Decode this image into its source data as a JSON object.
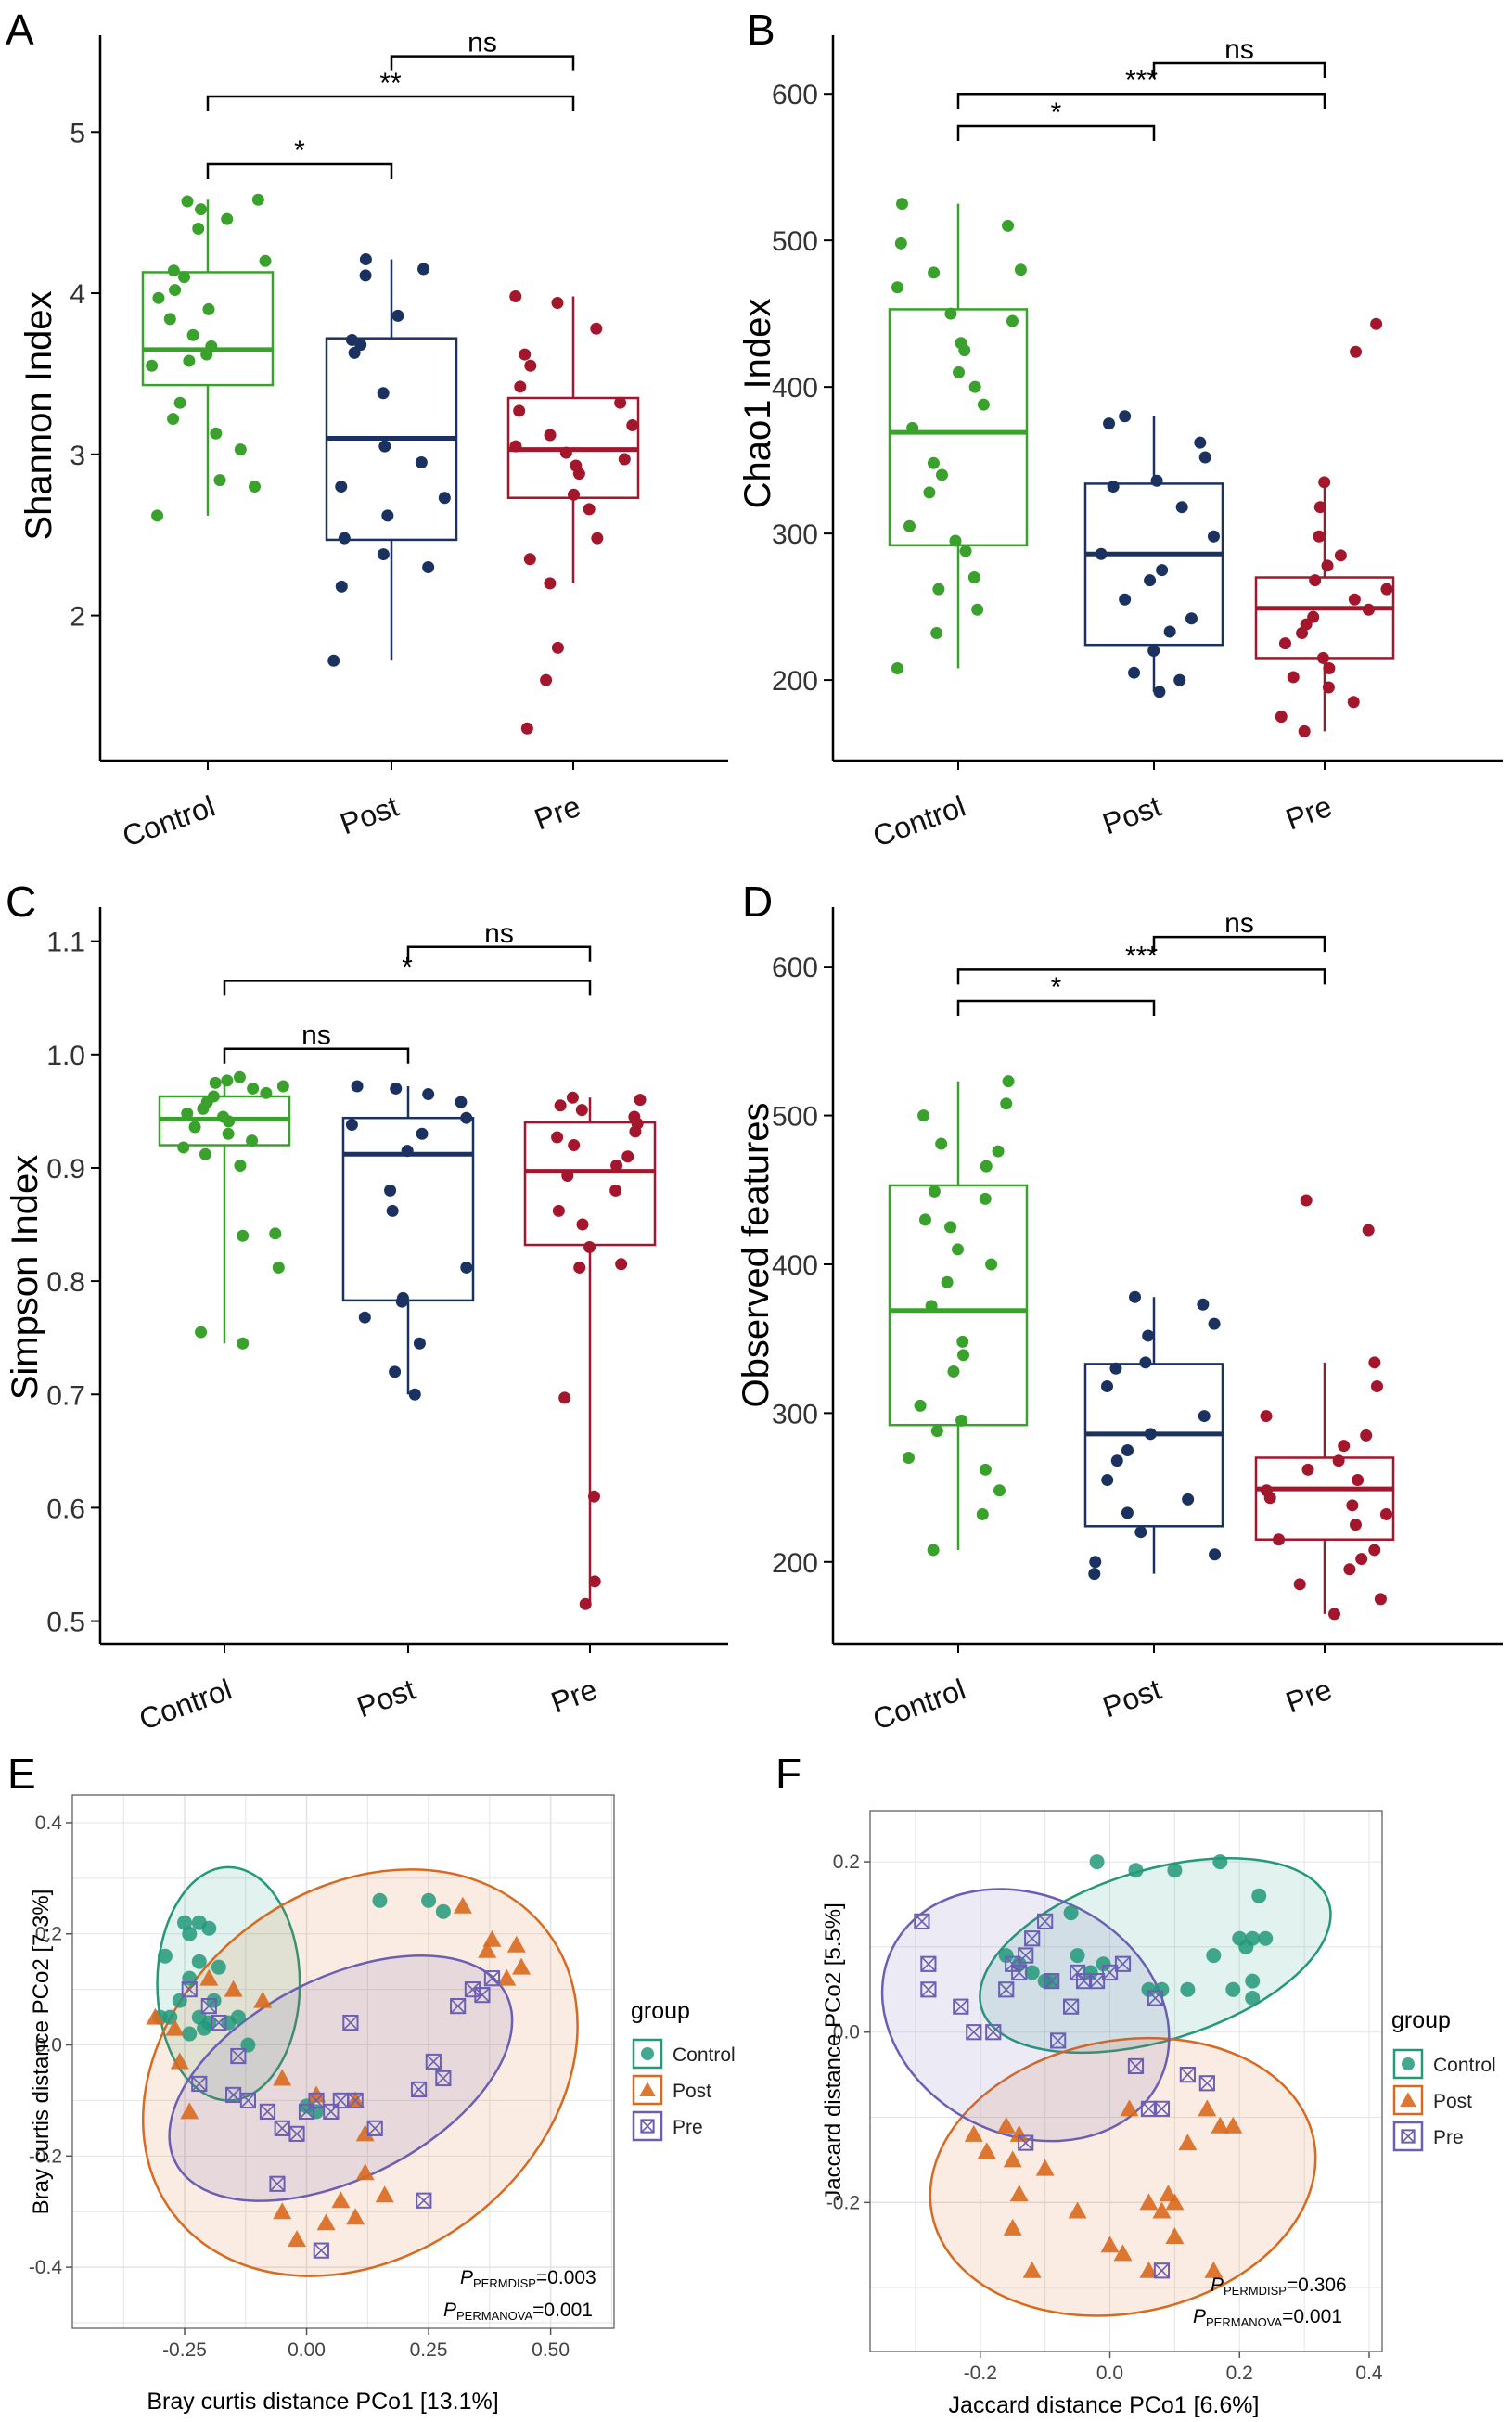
{
  "colors": {
    "control_box": "#3aa22c",
    "post_box": "#1b3260",
    "pre_box": "#a3162c",
    "control_pcoa": "#22997a",
    "post_pcoa": "#d9691e",
    "pre_pcoa": "#6b5fb3",
    "grid": "#e4e4e4"
  },
  "chart_data": [
    {
      "panel": "A",
      "type": "box",
      "ylabel": "Shannon Index",
      "categories": [
        "Control",
        "Post",
        "Pre"
      ],
      "ylim": [
        1.1,
        5.6
      ],
      "yticks": [
        {
          "v": 2,
          "label": "2"
        },
        {
          "v": 3,
          "label": "3"
        },
        {
          "v": 4,
          "label": "4"
        },
        {
          "v": 5,
          "label": "5"
        }
      ],
      "boxes": [
        {
          "q1": 3.43,
          "median": 3.65,
          "q3": 4.13,
          "whislo": 2.62,
          "whishi": 4.58
        },
        {
          "q1": 2.47,
          "median": 3.1,
          "q3": 3.72,
          "whislo": 1.72,
          "whishi": 4.21
        },
        {
          "q1": 2.73,
          "median": 3.03,
          "q3": 3.35,
          "whislo": 2.2,
          "whishi": 3.98
        }
      ],
      "points": [
        [
          4.58,
          4.57,
          4.52,
          4.46,
          4.4,
          4.2,
          4.14,
          4.1,
          4.02,
          3.97,
          3.9,
          3.84,
          3.74,
          3.67,
          3.62,
          3.58,
          3.55,
          3.32,
          3.22,
          3.13,
          3.03,
          2.84,
          2.8,
          2.62
        ],
        [
          4.21,
          4.15,
          4.11,
          3.86,
          3.71,
          3.68,
          3.63,
          3.38,
          3.05,
          2.95,
          2.8,
          2.73,
          2.62,
          2.48,
          2.38,
          2.3,
          2.18,
          1.72
        ],
        [
          3.98,
          3.94,
          3.78,
          3.62,
          3.55,
          3.42,
          3.32,
          3.27,
          3.18,
          3.12,
          3.05,
          3.01,
          2.97,
          2.93,
          2.88,
          2.75,
          2.66,
          2.48,
          2.35,
          2.2,
          1.8,
          1.6,
          1.3
        ]
      ],
      "brackets": [
        {
          "from": 0,
          "to": 1,
          "label": "*",
          "y": 4.8
        },
        {
          "from": 0,
          "to": 2,
          "label": "**",
          "y": 5.22
        },
        {
          "from": 1,
          "to": 2,
          "label": "ns",
          "y": 5.47
        }
      ]
    },
    {
      "panel": "B",
      "type": "box",
      "ylabel": "Chao1 Index",
      "categories": [
        "Control",
        "Post",
        "Pre"
      ],
      "ylim": [
        145,
        640
      ],
      "yticks": [
        {
          "v": 200,
          "label": "200"
        },
        {
          "v": 300,
          "label": "300"
        },
        {
          "v": 400,
          "label": "400"
        },
        {
          "v": 500,
          "label": "500"
        },
        {
          "v": 600,
          "label": "600"
        }
      ],
      "boxes": [
        {
          "q1": 292,
          "median": 369,
          "q3": 453,
          "whislo": 208,
          "whishi": 525
        },
        {
          "q1": 224,
          "median": 286,
          "q3": 334,
          "whislo": 192,
          "whishi": 380
        },
        {
          "q1": 215,
          "median": 249,
          "q3": 270,
          "whislo": 165,
          "whishi": 335
        }
      ],
      "points": [
        [
          525,
          510,
          498,
          480,
          478,
          468,
          450,
          445,
          430,
          425,
          410,
          400,
          388,
          372,
          348,
          340,
          328,
          305,
          295,
          288,
          270,
          262,
          248,
          232,
          208
        ],
        [
          380,
          375,
          362,
          352,
          336,
          332,
          318,
          298,
          286,
          275,
          268,
          255,
          242,
          233,
          220,
          205,
          200,
          192
        ],
        [
          443,
          424,
          335,
          318,
          298,
          285,
          278,
          268,
          262,
          255,
          248,
          243,
          238,
          232,
          225,
          215,
          208,
          202,
          195,
          185,
          175,
          165
        ]
      ],
      "brackets": [
        {
          "from": 0,
          "to": 1,
          "label": "*",
          "y": 578
        },
        {
          "from": 0,
          "to": 2,
          "label": "***",
          "y": 600
        },
        {
          "from": 1,
          "to": 2,
          "label": "ns",
          "y": 621
        }
      ]
    },
    {
      "panel": "C",
      "type": "box",
      "ylabel": "Simpson Index",
      "categories": [
        "Control",
        "Post",
        "Pre"
      ],
      "ylim": [
        0.48,
        1.13
      ],
      "yticks": [
        {
          "v": 0.5,
          "label": "0.5"
        },
        {
          "v": 0.6,
          "label": "0.6"
        },
        {
          "v": 0.7,
          "label": "0.7"
        },
        {
          "v": 0.8,
          "label": "0.8"
        },
        {
          "v": 0.9,
          "label": "0.9"
        },
        {
          "v": 1.0,
          "label": "1.0"
        },
        {
          "v": 1.1,
          "label": "1.1"
        }
      ],
      "boxes": [
        {
          "q1": 0.92,
          "median": 0.943,
          "q3": 0.963,
          "whislo": 0.745,
          "whishi": 0.98
        },
        {
          "q1": 0.783,
          "median": 0.912,
          "q3": 0.944,
          "whislo": 0.7,
          "whishi": 0.972
        },
        {
          "q1": 0.832,
          "median": 0.897,
          "q3": 0.94,
          "whislo": 0.515,
          "whishi": 0.962
        }
      ],
      "points": [
        [
          0.98,
          0.977,
          0.975,
          0.972,
          0.97,
          0.966,
          0.963,
          0.958,
          0.952,
          0.948,
          0.945,
          0.941,
          0.936,
          0.93,
          0.924,
          0.918,
          0.912,
          0.902,
          0.842,
          0.84,
          0.812,
          0.755,
          0.745
        ],
        [
          0.972,
          0.97,
          0.965,
          0.958,
          0.944,
          0.938,
          0.93,
          0.915,
          0.88,
          0.862,
          0.812,
          0.785,
          0.782,
          0.768,
          0.745,
          0.72,
          0.7
        ],
        [
          0.962,
          0.96,
          0.955,
          0.951,
          0.945,
          0.939,
          0.932,
          0.927,
          0.92,
          0.91,
          0.902,
          0.893,
          0.88,
          0.862,
          0.85,
          0.83,
          0.815,
          0.812,
          0.697,
          0.61,
          0.535,
          0.515
        ]
      ],
      "brackets": [
        {
          "from": 0,
          "to": 1,
          "label": "ns",
          "y": 1.005
        },
        {
          "from": 0,
          "to": 2,
          "label": "*",
          "y": 1.065
        },
        {
          "from": 1,
          "to": 2,
          "label": "ns",
          "y": 1.095
        }
      ]
    },
    {
      "panel": "D",
      "type": "box",
      "ylabel": "Observed features",
      "categories": [
        "Control",
        "Post",
        "Pre"
      ],
      "ylim": [
        145,
        640
      ],
      "yticks": [
        {
          "v": 200,
          "label": "200"
        },
        {
          "v": 300,
          "label": "300"
        },
        {
          "v": 400,
          "label": "400"
        },
        {
          "v": 500,
          "label": "500"
        },
        {
          "v": 600,
          "label": "600"
        }
      ],
      "boxes": [
        {
          "q1": 292,
          "median": 369,
          "q3": 453,
          "whislo": 208,
          "whishi": 523
        },
        {
          "q1": 224,
          "median": 286,
          "q3": 333,
          "whislo": 192,
          "whishi": 378
        },
        {
          "q1": 215,
          "median": 249,
          "q3": 270,
          "whislo": 165,
          "whishi": 334
        }
      ],
      "points": [
        [
          523,
          508,
          500,
          481,
          476,
          466,
          449,
          444,
          430,
          425,
          410,
          400,
          388,
          372,
          348,
          339,
          328,
          305,
          295,
          288,
          270,
          262,
          248,
          232,
          208
        ],
        [
          378,
          373,
          360,
          352,
          334,
          330,
          318,
          298,
          286,
          275,
          268,
          255,
          242,
          233,
          220,
          205,
          200,
          192
        ],
        [
          443,
          423,
          334,
          318,
          298,
          285,
          278,
          268,
          262,
          255,
          248,
          243,
          238,
          232,
          225,
          215,
          208,
          202,
          195,
          185,
          175,
          165
        ]
      ],
      "brackets": [
        {
          "from": 0,
          "to": 1,
          "label": "*",
          "y": 577
        },
        {
          "from": 0,
          "to": 2,
          "label": "***",
          "y": 598
        },
        {
          "from": 1,
          "to": 2,
          "label": "ns",
          "y": 620
        }
      ]
    },
    {
      "panel": "E",
      "type": "scatter",
      "xlabel": "Bray curtis distance PCo1 [13.1%]",
      "ylabel": "Bray curtis distance PCo2 [7.3%]",
      "xlim": [
        -0.48,
        0.63
      ],
      "ylim": [
        -0.51,
        0.45
      ],
      "xticks": [
        {
          "v": -0.25,
          "label": "-0.25"
        },
        {
          "v": 0.0,
          "label": "0.00"
        },
        {
          "v": 0.25,
          "label": "0.25"
        },
        {
          "v": 0.5,
          "label": "0.50"
        }
      ],
      "yticks": [
        {
          "v": -0.4,
          "label": "-0.4"
        },
        {
          "v": -0.2,
          "label": "-0.2"
        },
        {
          "v": 0.0,
          "label": "0.0"
        },
        {
          "v": 0.2,
          "label": "0.2"
        },
        {
          "v": 0.4,
          "label": "0.4"
        }
      ],
      "legend_title": "group",
      "stats": {
        "p_label": "P",
        "permdisp_sub": "PERMDISP",
        "permdisp_value": "=0.003",
        "permanova_sub": "PERMANOVA",
        "permanova_value": "=0.001"
      },
      "series": [
        {
          "name": "Control",
          "marker": "circle",
          "x": [
            -0.29,
            -0.24,
            -0.25,
            -0.22,
            -0.2,
            -0.22,
            -0.18,
            -0.24,
            -0.26,
            -0.28,
            -0.22,
            -0.2,
            -0.16,
            -0.14,
            -0.24,
            -0.12,
            -0.3,
            -0.21,
            0.15,
            0.25,
            0.28,
            0.02,
            0.0,
            -0.19
          ],
          "y": [
            0.16,
            0.2,
            0.22,
            0.22,
            0.21,
            0.15,
            0.14,
            0.12,
            0.08,
            0.05,
            0.05,
            0.04,
            0.04,
            0.05,
            0.02,
            0.0,
            0.05,
            0.03,
            0.26,
            0.26,
            0.24,
            -0.12,
            -0.11,
            0.08
          ]
        },
        {
          "name": "Post",
          "marker": "triangle",
          "x": [
            -0.31,
            -0.27,
            -0.26,
            -0.2,
            -0.15,
            -0.09,
            -0.05,
            0.02,
            0.1,
            0.12,
            0.32,
            0.37,
            0.38,
            0.43,
            0.44,
            0.41,
            0.12,
            0.07,
            0.16,
            0.1,
            0.04,
            -0.02,
            -0.24,
            -0.05
          ],
          "y": [
            0.05,
            0.03,
            -0.03,
            0.12,
            0.1,
            0.08,
            -0.06,
            -0.09,
            -0.1,
            -0.16,
            0.25,
            0.17,
            0.19,
            0.18,
            0.14,
            0.12,
            -0.23,
            -0.28,
            -0.27,
            -0.31,
            -0.32,
            -0.35,
            -0.12,
            -0.3
          ]
        },
        {
          "name": "Pre",
          "marker": "square-x",
          "x": [
            -0.24,
            -0.2,
            -0.18,
            -0.14,
            -0.15,
            -0.12,
            -0.08,
            -0.05,
            -0.02,
            0.0,
            0.02,
            0.05,
            0.07,
            0.1,
            0.14,
            0.23,
            0.26,
            0.28,
            0.31,
            0.34,
            0.36,
            0.38,
            -0.06,
            0.03,
            0.09,
            0.24,
            -0.22
          ],
          "y": [
            0.1,
            0.07,
            0.04,
            -0.02,
            -0.09,
            -0.1,
            -0.12,
            -0.15,
            -0.16,
            -0.12,
            -0.1,
            -0.12,
            -0.1,
            -0.1,
            -0.15,
            -0.08,
            -0.03,
            -0.06,
            0.07,
            0.1,
            0.09,
            0.12,
            -0.25,
            -0.37,
            0.04,
            -0.28,
            -0.07
          ]
        }
      ],
      "ellipses": [
        {
          "group": "Control",
          "cx": -0.16,
          "cy": 0.11,
          "rx": 0.146,
          "ry": 0.21,
          "angle": 0
        },
        {
          "group": "Post",
          "cx": 0.11,
          "cy": -0.05,
          "rx": 0.48,
          "ry": 0.33,
          "angle": 37
        },
        {
          "group": "Pre",
          "cx": 0.07,
          "cy": -0.06,
          "rx": 0.38,
          "ry": 0.18,
          "angle": 27
        }
      ]
    },
    {
      "panel": "F",
      "type": "scatter",
      "xlabel": "Jaccard distance PCo1 [6.6%]",
      "ylabel": "Jaccard distance PCo2 [5.5%]",
      "xlim": [
        -0.37,
        0.42
      ],
      "ylim": [
        -0.375,
        0.26
      ],
      "xticks": [
        {
          "v": -0.2,
          "label": "-0.2"
        },
        {
          "v": 0.0,
          "label": "0.0"
        },
        {
          "v": 0.2,
          "label": "0.2"
        },
        {
          "v": 0.4,
          "label": "0.4"
        }
      ],
      "yticks": [
        {
          "v": -0.2,
          "label": "-0.2"
        },
        {
          "v": 0.0,
          "label": "0.0"
        },
        {
          "v": 0.2,
          "label": "0.2"
        }
      ],
      "legend_title": "group",
      "stats": {
        "p_label": "P",
        "permdisp_sub": "PERMDISP",
        "permdisp_value": "=0.306",
        "permanova_sub": "PERMANOVA",
        "permanova_value": "=0.001"
      },
      "series": [
        {
          "name": "Control",
          "marker": "circle",
          "x": [
            -0.02,
            0.04,
            0.1,
            0.17,
            0.23,
            0.21,
            0.22,
            0.24,
            0.2,
            0.22,
            0.19,
            0.22,
            0.12,
            0.08,
            0.06,
            0.16,
            -0.05,
            -0.01,
            -0.16,
            -0.14,
            -0.12,
            -0.1,
            -0.09,
            -0.03,
            -0.06
          ],
          "y": [
            0.2,
            0.19,
            0.19,
            0.2,
            0.16,
            0.1,
            0.11,
            0.11,
            0.11,
            0.06,
            0.05,
            0.04,
            0.05,
            0.05,
            0.05,
            0.09,
            0.09,
            0.08,
            0.09,
            0.08,
            0.07,
            0.06,
            0.06,
            0.07,
            0.14
          ]
        },
        {
          "name": "Post",
          "marker": "triangle",
          "x": [
            -0.21,
            -0.19,
            -0.16,
            -0.14,
            -0.15,
            -0.1,
            -0.05,
            0.03,
            0.06,
            0.09,
            0.08,
            0.1,
            0.12,
            0.15,
            0.17,
            0.19,
            0.16,
            -0.15,
            -0.12,
            0.0,
            0.02,
            0.06,
            0.1,
            -0.14
          ],
          "y": [
            -0.12,
            -0.14,
            -0.11,
            -0.12,
            -0.15,
            -0.16,
            -0.21,
            -0.09,
            -0.2,
            -0.19,
            -0.21,
            -0.24,
            -0.13,
            -0.09,
            -0.11,
            -0.11,
            -0.28,
            -0.23,
            -0.28,
            -0.25,
            -0.26,
            -0.28,
            -0.2,
            -0.19
          ]
        },
        {
          "name": "Pre",
          "marker": "square-x",
          "x": [
            -0.29,
            -0.28,
            -0.28,
            -0.23,
            -0.21,
            -0.18,
            -0.16,
            -0.15,
            -0.14,
            -0.13,
            -0.12,
            -0.1,
            -0.09,
            -0.08,
            -0.06,
            -0.05,
            -0.04,
            -0.02,
            0.0,
            0.02,
            0.04,
            0.06,
            0.07,
            0.08,
            0.12,
            0.15,
            -0.13,
            0.08
          ],
          "y": [
            0.13,
            0.08,
            0.05,
            0.03,
            0.0,
            0.0,
            0.05,
            0.08,
            0.07,
            0.09,
            0.11,
            0.13,
            0.06,
            -0.01,
            0.03,
            0.07,
            0.06,
            0.06,
            0.07,
            0.08,
            -0.04,
            -0.09,
            0.04,
            -0.28,
            -0.05,
            -0.06,
            -0.13,
            -0.09
          ]
        }
      ],
      "ellipses": [
        {
          "group": "Control",
          "cx": 0.07,
          "cy": 0.09,
          "rx": 0.28,
          "ry": 0.1,
          "angle": 17
        },
        {
          "group": "Post",
          "cx": 0.02,
          "cy": -0.17,
          "rx": 0.3,
          "ry": 0.16,
          "angle": 11
        },
        {
          "group": "Pre",
          "cx": -0.13,
          "cy": 0.02,
          "rx": 0.23,
          "ry": 0.14,
          "angle": -27
        }
      ]
    }
  ]
}
